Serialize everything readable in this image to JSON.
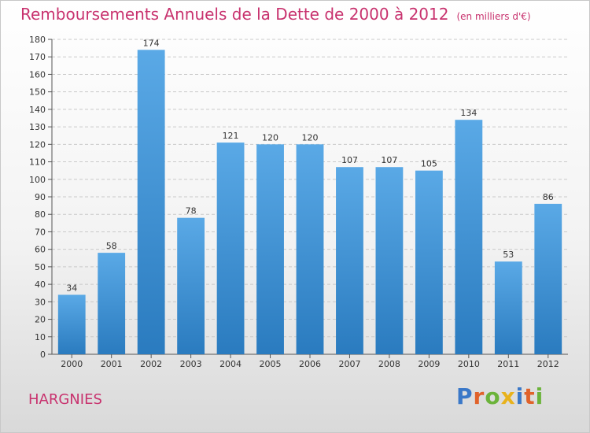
{
  "title": "Remboursements Annuels de la Dette de 2000 à 2012",
  "unit": "(en milliers d'€)",
  "commune": "HARGNIES",
  "logo": {
    "text": "Proxiti",
    "letters": [
      {
        "ch": "P",
        "color": "#3a78c8"
      },
      {
        "ch": "r",
        "color": "#e0622a"
      },
      {
        "ch": "o",
        "color": "#6bb33a"
      },
      {
        "ch": "x",
        "color": "#e8b21c"
      },
      {
        "ch": "i",
        "color": "#3a78c8"
      },
      {
        "ch": "t",
        "color": "#e0622a"
      },
      {
        "ch": "i",
        "color": "#6bb33a"
      }
    ]
  },
  "colors": {
    "bar_top": "#5aa9e6",
    "bar_bottom": "#2a7bbf",
    "title": "#c8326e",
    "grid": "#c9c9c9",
    "text": "#333333"
  },
  "chart_data": {
    "type": "bar",
    "categories": [
      "2000",
      "2001",
      "2002",
      "2003",
      "2004",
      "2005",
      "2006",
      "2007",
      "2008",
      "2009",
      "2010",
      "2011",
      "2012"
    ],
    "values": [
      34,
      58,
      174,
      78,
      121,
      120,
      120,
      107,
      107,
      105,
      134,
      53,
      86
    ],
    "ylim": [
      0,
      180
    ],
    "ytick_step": 10,
    "grid": true,
    "data_labels": true
  }
}
